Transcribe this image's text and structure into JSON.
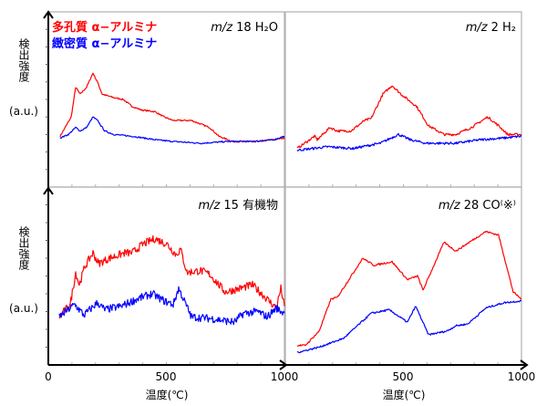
{
  "colors": {
    "porous": "#ff0000",
    "dense": "#0000ff",
    "axis": "#000000",
    "frame": "#b0b0b0"
  },
  "legend": [
    {
      "label": "多孔質 α−アルミナ",
      "color": "#ff0000"
    },
    {
      "label": "緻密質 α−アルミナ",
      "color": "#0000ff"
    }
  ],
  "ylabel": {
    "text": "検出強度",
    "unit": "(a.u.)"
  },
  "xlabel": "温度(℃)",
  "chart_data": [
    {
      "type": "line",
      "panel": "top-left",
      "title": {
        "italic": "m/z",
        "rest": "18  H₂O"
      },
      "xlim": [
        0,
        1000
      ],
      "ylim": [
        0,
        100
      ],
      "xlabel": "",
      "ylabel": "検出強度 (a.u.)",
      "series": [
        {
          "name": "多孔質 α−アルミナ",
          "color": "#ff0000",
          "points": [
            [
              50,
              29
            ],
            [
              97,
              40
            ],
            [
              116,
              57
            ],
            [
              135,
              53
            ],
            [
              162,
              57
            ],
            [
              189,
              65
            ],
            [
              208,
              60
            ],
            [
              228,
              53
            ],
            [
              278,
              51
            ],
            [
              317,
              50
            ],
            [
              355,
              46
            ],
            [
              394,
              44
            ],
            [
              452,
              43
            ],
            [
              490,
              40
            ],
            [
              529,
              38
            ],
            [
              606,
              38
            ],
            [
              683,
              34
            ],
            [
              722,
              29
            ],
            [
              780,
              26
            ],
            [
              819,
              26
            ],
            [
              876,
              26
            ],
            [
              954,
              27
            ],
            [
              1000,
              28
            ]
          ]
        },
        {
          "name": "緻密質 α−アルミナ",
          "color": "#0000ff",
          "points": [
            [
              50,
              28
            ],
            [
              85,
              30
            ],
            [
              116,
              34
            ],
            [
              135,
              32
            ],
            [
              162,
              34
            ],
            [
              189,
              40
            ],
            [
              208,
              38
            ],
            [
              239,
              32
            ],
            [
              278,
              30
            ],
            [
              355,
              29
            ],
            [
              452,
              27
            ],
            [
              529,
              26
            ],
            [
              645,
              25
            ],
            [
              761,
              26
            ],
            [
              876,
              26
            ],
            [
              954,
              27
            ],
            [
              1000,
              29
            ]
          ]
        }
      ]
    },
    {
      "type": "line",
      "panel": "top-right",
      "title": {
        "italic": "m/z",
        "rest": "2  H₂"
      },
      "xlim": [
        0,
        1000
      ],
      "ylim": [
        0,
        100
      ],
      "series": [
        {
          "name": "多孔質 α−アルミナ",
          "color": "#ff0000",
          "points": [
            [
              50,
              22
            ],
            [
              124,
              29
            ],
            [
              135,
              27
            ],
            [
              189,
              34
            ],
            [
              220,
              32
            ],
            [
              278,
              32
            ],
            [
              336,
              38
            ],
            [
              363,
              39
            ],
            [
              413,
              53
            ],
            [
              452,
              58
            ],
            [
              490,
              53
            ],
            [
              556,
              46
            ],
            [
              606,
              35
            ],
            [
              672,
              30
            ],
            [
              722,
              30
            ],
            [
              788,
              34
            ],
            [
              857,
              40
            ],
            [
              903,
              35
            ],
            [
              942,
              30
            ],
            [
              1000,
              30
            ]
          ]
        },
        {
          "name": "緻密質 α−アルミナ",
          "color": "#0000ff",
          "points": [
            [
              50,
              21
            ],
            [
              181,
              23
            ],
            [
              286,
              22
            ],
            [
              402,
              25
            ],
            [
              479,
              30
            ],
            [
              529,
              27
            ],
            [
              595,
              25
            ],
            [
              722,
              25
            ],
            [
              826,
              27
            ],
            [
              927,
              28
            ],
            [
              1000,
              29
            ]
          ]
        }
      ]
    },
    {
      "type": "line",
      "panel": "bottom-left",
      "title": {
        "italic": "m/z",
        "rest": "15  有機物"
      },
      "xlim": [
        0,
        1000
      ],
      "ylim": [
        0,
        100
      ],
      "xlabel": "温度(℃)",
      "ylabel": "検出強度 (a.u.)",
      "xticks": [
        "0",
        "500",
        "1000"
      ],
      "series": [
        {
          "name": "多孔質 α−アルミナ",
          "color": "#ff0000",
          "points": [
            [
              46,
              27
            ],
            [
              93,
              34
            ],
            [
              116,
              52
            ],
            [
              131,
              45
            ],
            [
              154,
              55
            ],
            [
              189,
              63
            ],
            [
              212,
              57
            ],
            [
              259,
              60
            ],
            [
              324,
              63
            ],
            [
              355,
              63
            ],
            [
              402,
              68
            ],
            [
              452,
              71
            ],
            [
              502,
              68
            ],
            [
              541,
              62
            ],
            [
              560,
              65
            ],
            [
              587,
              52
            ],
            [
              645,
              53
            ],
            [
              683,
              51
            ],
            [
              749,
              41
            ],
            [
              811,
              43
            ],
            [
              865,
              45
            ],
            [
              927,
              37
            ],
            [
              965,
              32
            ],
            [
              985,
              43
            ],
            [
              1000,
              33
            ]
          ]
        },
        {
          "name": "緻密質 α−アルミナ",
          "color": "#0000ff",
          "points": [
            [
              46,
              27
            ],
            [
              112,
              34
            ],
            [
              151,
              28
            ],
            [
              208,
              35
            ],
            [
              239,
              31
            ],
            [
              309,
              33
            ],
            [
              375,
              37
            ],
            [
              440,
              40
            ],
            [
              490,
              36
            ],
            [
              529,
              34
            ],
            [
              552,
              43
            ],
            [
              606,
              27
            ],
            [
              695,
              26
            ],
            [
              788,
              24
            ],
            [
              826,
              29
            ],
            [
              888,
              30
            ],
            [
              927,
              27
            ],
            [
              965,
              32
            ],
            [
              1000,
              29
            ]
          ]
        }
      ]
    },
    {
      "type": "line",
      "panel": "bottom-right",
      "title": {
        "italic": "m/z",
        "rest": "28  CO⁽※⁾"
      },
      "xlim": [
        0,
        1000
      ],
      "ylim": [
        0,
        100
      ],
      "xlabel": "温度(℃)",
      "xticks": [
        "500",
        "1000"
      ],
      "series": [
        {
          "name": "多孔質 α−アルミナ",
          "color": "#ff0000",
          "points": [
            [
              50,
              11
            ],
            [
              85,
              11
            ],
            [
              143,
              19
            ],
            [
              193,
              37
            ],
            [
              220,
              38
            ],
            [
              328,
              60
            ],
            [
              375,
              56
            ],
            [
              452,
              58
            ],
            [
              517,
              48
            ],
            [
              560,
              50
            ],
            [
              583,
              42
            ],
            [
              672,
              69
            ],
            [
              722,
              64
            ],
            [
              849,
              75
            ],
            [
              903,
              73
            ],
            [
              965,
              41
            ],
            [
              1000,
              37
            ]
          ]
        },
        {
          "name": "緻密質 α−アルミナ",
          "color": "#0000ff",
          "points": [
            [
              50,
              7
            ],
            [
              143,
              10
            ],
            [
              247,
              15
            ],
            [
              363,
              29
            ],
            [
              440,
              31
            ],
            [
              517,
              24
            ],
            [
              552,
              33
            ],
            [
              606,
              17
            ],
            [
              683,
              19
            ],
            [
              722,
              22
            ],
            [
              772,
              23
            ],
            [
              849,
              32
            ],
            [
              927,
              35
            ],
            [
              1000,
              36
            ]
          ]
        }
      ]
    }
  ]
}
